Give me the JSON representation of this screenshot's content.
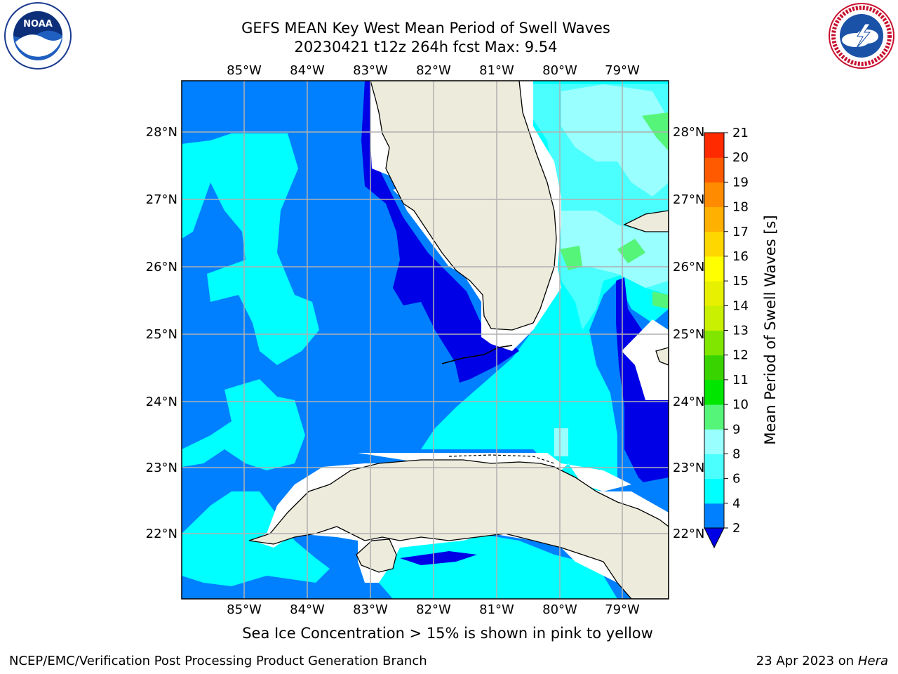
{
  "header": {
    "title_line1": "GEFS MEAN Key West Mean Period of Swell Waves",
    "title_line2": "20230421 t12z 264h fcst   Max: 9.54"
  },
  "logos": {
    "left": {
      "icon": "noaa-logo-icon",
      "text": "NOAA",
      "ring_text": "NATIONAL OCEANIC AND ATMOSPHERIC ADMINISTRATION · U.S. DEPARTMENT OF COMMERCE"
    },
    "right": {
      "icon": "nws-logo-icon",
      "ring_text": "NATIONAL WEATHER SERVICE"
    }
  },
  "map": {
    "longitude_labels": [
      "85°W",
      "84°W",
      "83°W",
      "82°W",
      "81°W",
      "80°W",
      "79°W"
    ],
    "latitude_labels": [
      "28°N",
      "27°N",
      "26°N",
      "25°N",
      "24°N",
      "23°N",
      "22°N"
    ],
    "field_colors": {
      "land": "#ecebdc",
      "level_below_2": "#0000e6",
      "level_2_4": "#0080ff",
      "level_4_6": "#00ffff",
      "level_6_8": "#4cffff",
      "level_8_9": "#99ffff",
      "level_9_10": "#55f57a",
      "no_data": "#ffffff"
    }
  },
  "colorbar": {
    "label": "Mean Period of Swell Waves [s]",
    "ticks": [
      "2",
      "4",
      "6",
      "8",
      "9",
      "10",
      "11",
      "12",
      "13",
      "14",
      "15",
      "16",
      "17",
      "18",
      "19",
      "20",
      "21"
    ],
    "colors": [
      "#0080ff",
      "#00ffff",
      "#4cffff",
      "#99ffff",
      "#55f57a",
      "#00e600",
      "#39d400",
      "#80e600",
      "#c8f000",
      "#e6f000",
      "#ffff00",
      "#ffd700",
      "#ffb000",
      "#ff8c00",
      "#ff5a00",
      "#ff2a00",
      "#ff0000"
    ],
    "under_color": "#0000e6"
  },
  "caption": "Sea Ice Concentration > 15% is shown in pink to yellow",
  "footer": {
    "left": "NCEP/EMC/Verification Post Processing Product Generation Branch",
    "right_prefix": "23 Apr 2023 on ",
    "right_host": "Hera"
  }
}
